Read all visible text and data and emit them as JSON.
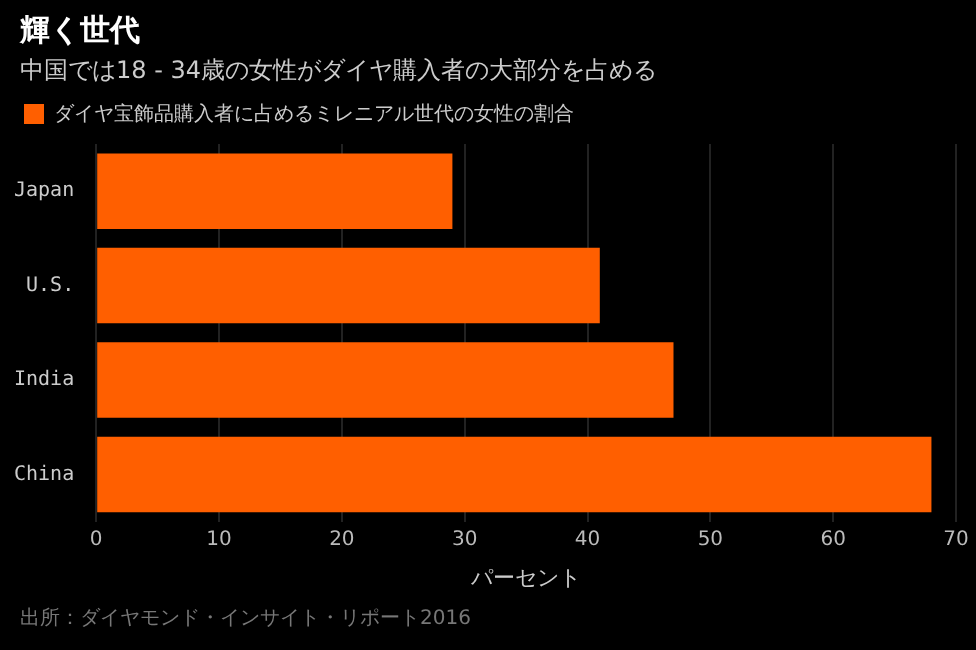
{
  "chart_data": {
    "type": "bar",
    "orientation": "horizontal",
    "title": "輝く世代",
    "subtitle": "中国では18 - 34歳の女性がダイヤ購入者の大部分を占める",
    "xlabel": "パーセント",
    "categories": [
      "Japan",
      "U.S.",
      "India",
      "China"
    ],
    "series": [
      {
        "name": "ダイヤ宝飾品購入者に占めるミレニアル世代の女性の割合",
        "color": "#ff5f00",
        "values": [
          29,
          41,
          47,
          68
        ]
      }
    ],
    "xlim": [
      0,
      70
    ],
    "xticks": [
      0,
      10,
      20,
      30,
      40,
      50,
      60,
      70
    ],
    "grid": "x",
    "legend": "top left",
    "annotations": [
      "出所：ダイヤモンド・インサイト・リポート2016"
    ]
  }
}
